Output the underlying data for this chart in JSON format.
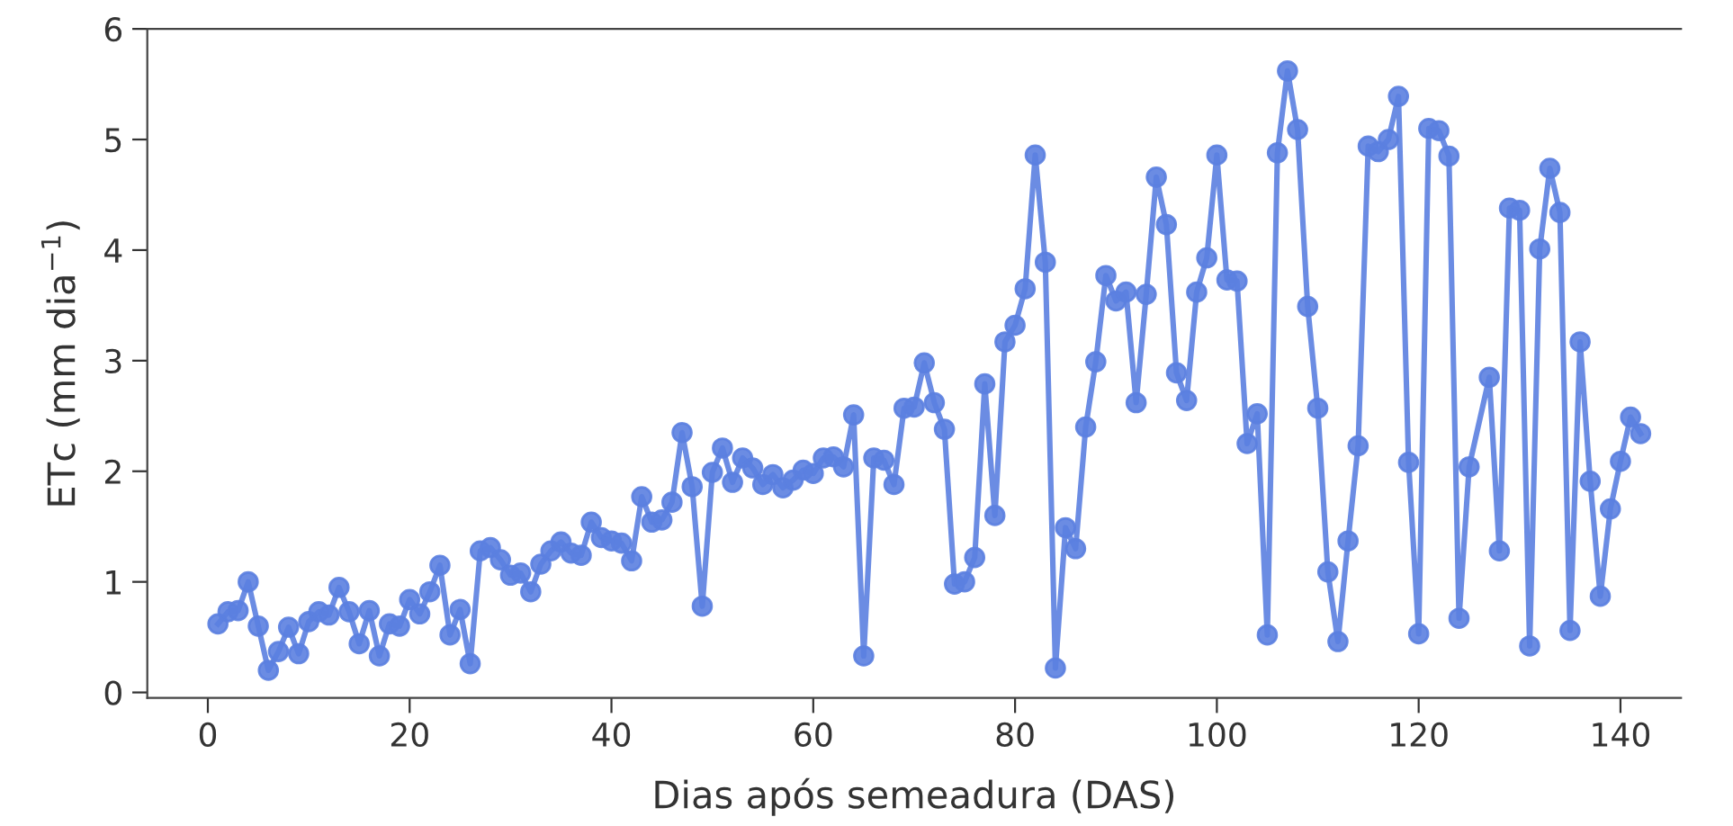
{
  "chart_data": {
    "type": "line",
    "xlabel": "Dias após semeadura (DAS)",
    "ylabel": "ETc (mm dia$^{−1}$)",
    "xlim": [
      -6,
      146
    ],
    "xticks": [
      0,
      20,
      40,
      60,
      80,
      100,
      120,
      140
    ],
    "ylim": [
      -0.05,
      6
    ],
    "yticks": [
      0,
      1,
      2,
      3,
      4,
      5,
      6
    ],
    "marker": "circle",
    "line_style": "solid",
    "grid": false,
    "legend": false,
    "series": [
      {
        "color": "#5b7fe0",
        "x": [
          1,
          2,
          3,
          4,
          5,
          6,
          7,
          8,
          9,
          10,
          11,
          12,
          13,
          14,
          15,
          16,
          17,
          18,
          19,
          20,
          21,
          22,
          23,
          24,
          25,
          26,
          27,
          28,
          29,
          30,
          31,
          32,
          33,
          34,
          35,
          36,
          37,
          38,
          39,
          40,
          41,
          42,
          43,
          44,
          45,
          46,
          47,
          48,
          49,
          50,
          51,
          52,
          53,
          54,
          55,
          56,
          57,
          58,
          59,
          60,
          61,
          62,
          63,
          64,
          65,
          66,
          67,
          68,
          69,
          70,
          71,
          72,
          73,
          74,
          75,
          76,
          77,
          78,
          79,
          80,
          81,
          82,
          83,
          84,
          85,
          86,
          87,
          88,
          89,
          90,
          91,
          92,
          93,
          94,
          95,
          96,
          97,
          98,
          99,
          100,
          101,
          102,
          103,
          104,
          105,
          106,
          107,
          108,
          109,
          110,
          111,
          112,
          113,
          114,
          115,
          116,
          117,
          118,
          119,
          120,
          121,
          122,
          123,
          124,
          125,
          127,
          128,
          129,
          130,
          131,
          132,
          133,
          134,
          135,
          136,
          137,
          138,
          139,
          140,
          141,
          142
        ],
        "values": [
          0.62,
          0.73,
          0.74,
          1.0,
          0.6,
          0.2,
          0.37,
          0.59,
          0.35,
          0.64,
          0.73,
          0.7,
          0.95,
          0.73,
          0.44,
          0.74,
          0.33,
          0.62,
          0.6,
          0.84,
          0.71,
          0.91,
          1.15,
          0.52,
          0.75,
          0.26,
          1.28,
          1.31,
          1.2,
          1.06,
          1.08,
          0.91,
          1.16,
          1.28,
          1.36,
          1.26,
          1.24,
          1.54,
          1.4,
          1.37,
          1.35,
          1.19,
          1.77,
          1.54,
          1.56,
          1.72,
          2.35,
          1.86,
          0.78,
          1.99,
          2.21,
          1.9,
          2.12,
          2.03,
          1.88,
          1.97,
          1.85,
          1.92,
          2.01,
          1.98,
          2.12,
          2.13,
          2.04,
          2.51,
          0.33,
          2.12,
          2.1,
          1.88,
          2.57,
          2.58,
          2.98,
          2.62,
          2.38,
          0.98,
          1.0,
          1.22,
          2.79,
          1.6,
          3.17,
          3.32,
          3.65,
          4.86,
          3.89,
          0.22,
          1.49,
          1.3,
          2.4,
          2.99,
          3.77,
          3.54,
          3.62,
          2.62,
          3.6,
          4.66,
          4.23,
          2.89,
          2.64,
          3.62,
          3.93,
          4.86,
          3.73,
          3.72,
          2.25,
          2.52,
          0.52,
          4.88,
          5.62,
          5.09,
          3.49,
          2.57,
          1.09,
          0.46,
          1.37,
          2.23,
          4.94,
          4.89,
          5.0,
          5.39,
          2.08,
          0.53,
          5.1,
          5.08,
          4.85,
          0.67,
          2.04,
          2.85,
          1.28,
          4.38,
          4.36,
          0.42,
          4.01,
          4.74,
          4.34,
          0.56,
          3.17,
          1.91,
          0.87,
          1.66,
          2.09,
          2.49,
          2.34
        ]
      }
    ]
  }
}
